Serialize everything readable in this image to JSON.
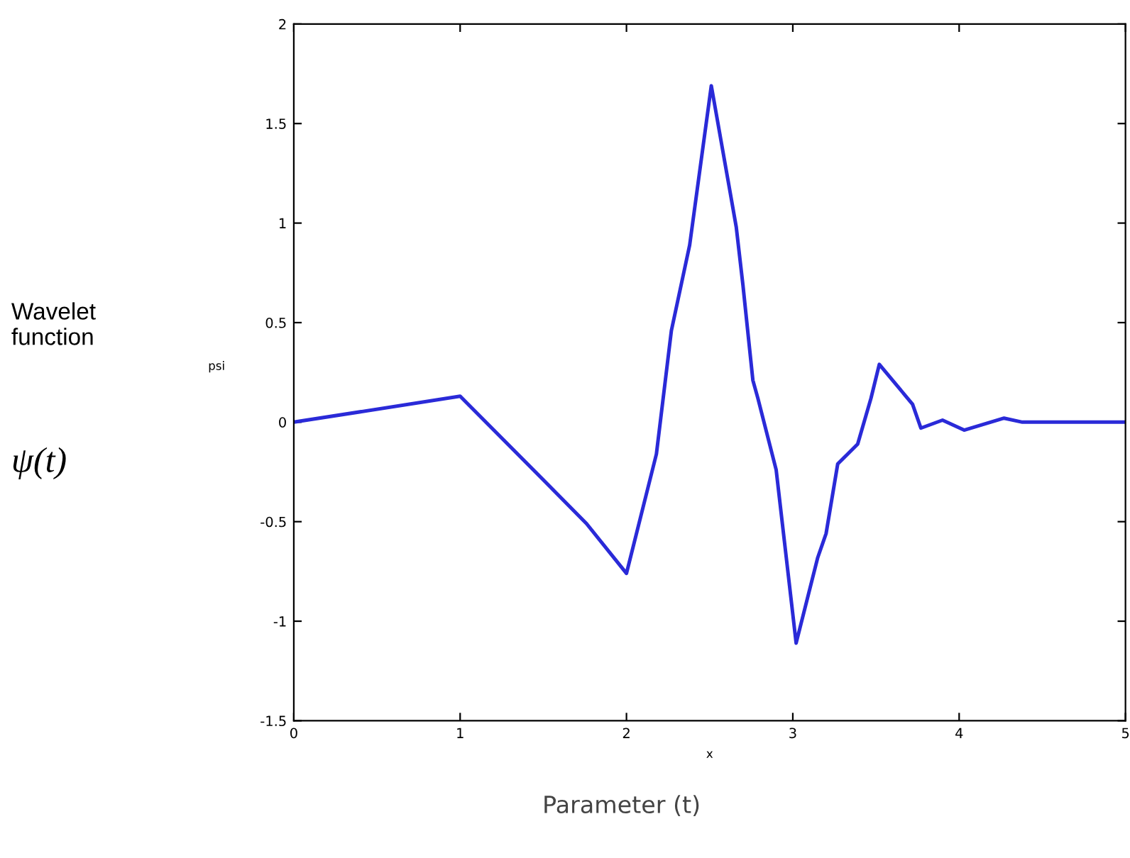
{
  "chart_data": {
    "type": "line",
    "xlabel": "x",
    "ylabel": "psi",
    "x": [
      0,
      1,
      1.5,
      1.76,
      2.0,
      2.18,
      2.27,
      2.38,
      2.51,
      2.62,
      2.66,
      2.7,
      2.76,
      2.79,
      2.9,
      3.02,
      3.15,
      3.2,
      3.27,
      3.39,
      3.47,
      3.52,
      3.72,
      3.77,
      3.9,
      4.03,
      4.27,
      4.38,
      5
    ],
    "series": [
      {
        "color": "#2a2ad8",
        "values": [
          0,
          0.13,
          -0.29,
          -0.51,
          -0.76,
          -0.16,
          0.46,
          0.89,
          1.69,
          1.17,
          0.98,
          0.69,
          0.21,
          0.12,
          -0.24,
          -1.11,
          -0.68,
          -0.56,
          -0.21,
          -0.11,
          0.12,
          0.29,
          0.09,
          -0.03,
          0.01,
          -0.04,
          0.02,
          0,
          0
        ]
      }
    ],
    "xlim": [
      0,
      5
    ],
    "ylim": [
      -1.5,
      2
    ],
    "xticks": [
      0,
      1,
      2,
      3,
      4,
      5
    ],
    "yticks": [
      -1.5,
      -1,
      -0.5,
      0,
      0.5,
      1,
      1.5,
      2
    ],
    "grid": false,
    "legend": false,
    "marker": "none",
    "line_style": "solid",
    "annotations": [
      "Wavelet\nfunction",
      "ψ(t)",
      "Parameter (t)"
    ]
  }
}
